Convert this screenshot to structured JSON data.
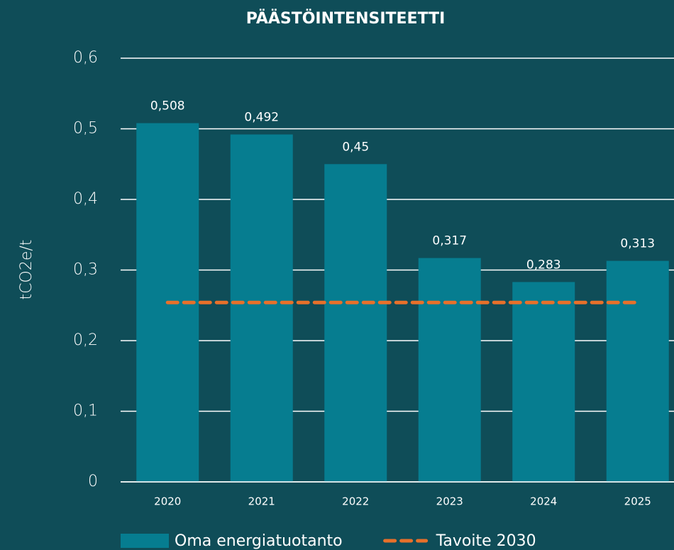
{
  "chart_data": {
    "type": "bar",
    "title": "PÄÄSTÖINTENSITEETTI",
    "y_label": "tCO2e/t",
    "categories": [
      "2020",
      "2021",
      "2022",
      "2023",
      "2024",
      "2025"
    ],
    "series": [
      {
        "name": "Oma energiatuotanto",
        "type": "bar",
        "color": "#067d90",
        "values": [
          0.508,
          0.492,
          0.45,
          0.317,
          0.283,
          0.313
        ],
        "value_labels": [
          "0,508",
          "0,492",
          "0,45",
          "0,317",
          "0,283",
          "0,313"
        ]
      },
      {
        "name": "Tavoite 2030",
        "type": "line",
        "dashed": true,
        "color": "#e8702a",
        "values": [
          0.254,
          0.254,
          0.254,
          0.254,
          0.254,
          0.254
        ]
      }
    ],
    "ylim": [
      0,
      0.6
    ],
    "yticks": [
      0,
      {
        "value": 0.1,
        "label": "0,1"
      },
      {
        "value": 0.2,
        "label": "0,2"
      },
      {
        "value": 0.3,
        "label": "0,3"
      },
      {
        "value": 0.4,
        "label": "0,4"
      },
      {
        "value": 0.5,
        "label": "0,5"
      },
      {
        "value": 0.6,
        "label": "0,6"
      }
    ],
    "grid": true,
    "legend": "bottom"
  }
}
